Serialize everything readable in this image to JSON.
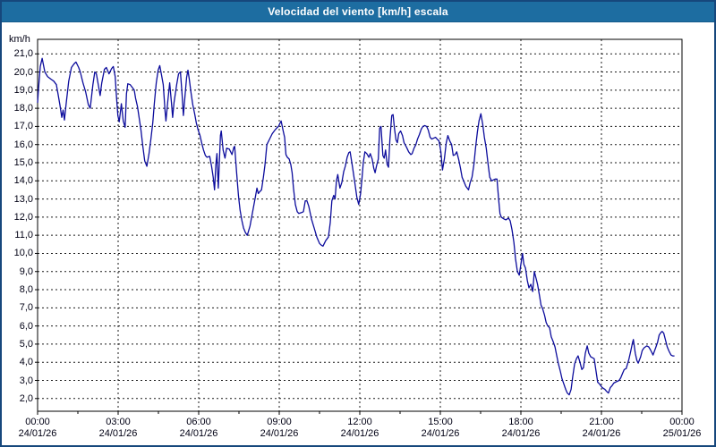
{
  "window": {
    "title": "Velocidad del viento [km/h] escala"
  },
  "colors": {
    "titlebar": "#1d6da1",
    "window_border": "#16477c",
    "line": "#0c0c9c",
    "grid": "#1a1a1a",
    "plot_border": "#000000",
    "label_text": "#000014"
  },
  "chart_data": {
    "type": "line",
    "title": "Velocidad del viento [km/h] escala",
    "ylabel": "km/h",
    "series_name": "Velocidad del viento [km/h]",
    "grid": "dotted",
    "x_hours_range": [
      0,
      24
    ],
    "y_range": [
      1.3,
      21.8
    ],
    "minor_tick_hours": 1.5,
    "y_ticks": [
      {
        "value": 2,
        "label": "2,0"
      },
      {
        "value": 3,
        "label": "3,0"
      },
      {
        "value": 4,
        "label": "4,0"
      },
      {
        "value": 5,
        "label": "5,0"
      },
      {
        "value": 6,
        "label": "6,0"
      },
      {
        "value": 7,
        "label": "7,0"
      },
      {
        "value": 8,
        "label": "8,0"
      },
      {
        "value": 9,
        "label": "9,0"
      },
      {
        "value": 10,
        "label": "10,0"
      },
      {
        "value": 11,
        "label": "11,0"
      },
      {
        "value": 12,
        "label": "12,0"
      },
      {
        "value": 13,
        "label": "13,0"
      },
      {
        "value": 14,
        "label": "14,0"
      },
      {
        "value": 15,
        "label": "15,0"
      },
      {
        "value": 16,
        "label": "16,0"
      },
      {
        "value": 17,
        "label": "17,0"
      },
      {
        "value": 18,
        "label": "18,0"
      },
      {
        "value": 19,
        "label": "19,0"
      },
      {
        "value": 20,
        "label": "20,0"
      },
      {
        "value": 21,
        "label": "21,0"
      }
    ],
    "x_ticks": [
      {
        "hour": 0,
        "time": "00:00",
        "date": "24/01/26"
      },
      {
        "hour": 3,
        "time": "03:00",
        "date": "24/01/26"
      },
      {
        "hour": 6,
        "time": "06:00",
        "date": "24/01/26"
      },
      {
        "hour": 9,
        "time": "09:00",
        "date": "24/01/26"
      },
      {
        "hour": 12,
        "time": "12:00",
        "date": "24/01/26"
      },
      {
        "hour": 15,
        "time": "15:00",
        "date": "24/01/26"
      },
      {
        "hour": 18,
        "time": "18:00",
        "date": "24/01/26"
      },
      {
        "hour": 21,
        "time": "21:00",
        "date": "24/01/26"
      },
      {
        "hour": 24,
        "time": "00:00",
        "date": "25/01/26"
      }
    ],
    "points": [
      [
        0.0,
        18.3
      ],
      [
        0.03,
        19.0
      ],
      [
        0.1,
        20.3
      ],
      [
        0.17,
        20.75
      ],
      [
        0.27,
        20.0
      ],
      [
        0.37,
        19.75
      ],
      [
        0.5,
        19.6
      ],
      [
        0.6,
        19.5
      ],
      [
        0.7,
        19.3
      ],
      [
        0.76,
        18.8
      ],
      [
        0.83,
        18.2
      ],
      [
        0.9,
        17.5
      ],
      [
        0.95,
        17.9
      ],
      [
        1.0,
        17.35
      ],
      [
        1.06,
        18.2
      ],
      [
        1.16,
        19.5
      ],
      [
        1.26,
        20.25
      ],
      [
        1.36,
        20.45
      ],
      [
        1.43,
        20.55
      ],
      [
        1.53,
        20.25
      ],
      [
        1.59,
        20.0
      ],
      [
        1.69,
        19.4
      ],
      [
        1.79,
        18.9
      ],
      [
        1.89,
        18.2
      ],
      [
        1.96,
        18.0
      ],
      [
        2.06,
        19.3
      ],
      [
        2.13,
        20.0
      ],
      [
        2.19,
        19.9
      ],
      [
        2.26,
        19.3
      ],
      [
        2.33,
        18.7
      ],
      [
        2.39,
        19.4
      ],
      [
        2.49,
        20.15
      ],
      [
        2.56,
        20.25
      ],
      [
        2.66,
        19.9
      ],
      [
        2.76,
        20.2
      ],
      [
        2.82,
        20.3
      ],
      [
        2.89,
        19.75
      ],
      [
        2.94,
        18.6
      ],
      [
        2.99,
        17.6
      ],
      [
        3.04,
        17.25
      ],
      [
        3.12,
        18.25
      ],
      [
        3.19,
        17.3
      ],
      [
        3.26,
        16.95
      ],
      [
        3.31,
        18.8
      ],
      [
        3.36,
        19.35
      ],
      [
        3.45,
        19.3
      ],
      [
        3.55,
        19.1
      ],
      [
        3.6,
        19.0
      ],
      [
        3.65,
        18.55
      ],
      [
        3.72,
        18.1
      ],
      [
        3.79,
        17.4
      ],
      [
        3.85,
        16.8
      ],
      [
        3.92,
        15.9
      ],
      [
        3.99,
        15.1
      ],
      [
        4.07,
        14.8
      ],
      [
        4.15,
        15.5
      ],
      [
        4.22,
        16.3
      ],
      [
        4.29,
        17.2
      ],
      [
        4.35,
        18.3
      ],
      [
        4.42,
        19.4
      ],
      [
        4.49,
        20.1
      ],
      [
        4.55,
        20.35
      ],
      [
        4.62,
        19.8
      ],
      [
        4.68,
        19.3
      ],
      [
        4.75,
        17.8
      ],
      [
        4.78,
        17.3
      ],
      [
        4.85,
        18.4
      ],
      [
        4.92,
        19.4
      ],
      [
        4.98,
        18.4
      ],
      [
        5.03,
        17.5
      ],
      [
        5.08,
        18.3
      ],
      [
        5.18,
        19.3
      ],
      [
        5.25,
        19.9
      ],
      [
        5.32,
        20.0
      ],
      [
        5.38,
        18.8
      ],
      [
        5.43,
        17.6
      ],
      [
        5.48,
        18.5
      ],
      [
        5.55,
        19.7
      ],
      [
        5.6,
        20.1
      ],
      [
        5.65,
        19.6
      ],
      [
        5.71,
        18.9
      ],
      [
        5.78,
        18.2
      ],
      [
        5.85,
        17.7
      ],
      [
        5.91,
        17.2
      ],
      [
        5.98,
        16.8
      ],
      [
        6.05,
        16.5
      ],
      [
        6.11,
        16.1
      ],
      [
        6.18,
        15.7
      ],
      [
        6.25,
        15.4
      ],
      [
        6.31,
        15.3
      ],
      [
        6.41,
        15.35
      ],
      [
        6.48,
        14.8
      ],
      [
        6.54,
        14.2
      ],
      [
        6.59,
        13.5
      ],
      [
        6.64,
        14.9
      ],
      [
        6.68,
        15.5
      ],
      [
        6.73,
        13.6
      ],
      [
        6.81,
        16.5
      ],
      [
        6.84,
        16.75
      ],
      [
        6.91,
        15.7
      ],
      [
        6.98,
        15.25
      ],
      [
        7.04,
        15.8
      ],
      [
        7.14,
        15.75
      ],
      [
        7.24,
        15.45
      ],
      [
        7.31,
        15.85
      ],
      [
        7.34,
        15.9
      ],
      [
        7.41,
        14.5
      ],
      [
        7.48,
        13.2
      ],
      [
        7.54,
        12.4
      ],
      [
        7.61,
        11.8
      ],
      [
        7.67,
        11.4
      ],
      [
        7.74,
        11.15
      ],
      [
        7.81,
        11.0
      ],
      [
        7.91,
        11.5
      ],
      [
        8.01,
        12.3
      ],
      [
        8.11,
        13.1
      ],
      [
        8.17,
        13.6
      ],
      [
        8.22,
        13.3
      ],
      [
        8.27,
        13.4
      ],
      [
        8.34,
        13.5
      ],
      [
        8.41,
        14.2
      ],
      [
        8.47,
        14.9
      ],
      [
        8.54,
        16.0
      ],
      [
        8.64,
        16.3
      ],
      [
        8.74,
        16.6
      ],
      [
        8.84,
        16.8
      ],
      [
        8.9,
        16.9
      ],
      [
        8.97,
        17.0
      ],
      [
        9.07,
        17.3
      ],
      [
        9.14,
        16.8
      ],
      [
        9.2,
        16.4
      ],
      [
        9.25,
        15.45
      ],
      [
        9.3,
        15.3
      ],
      [
        9.37,
        15.2
      ],
      [
        9.43,
        14.9
      ],
      [
        9.48,
        14.45
      ],
      [
        9.53,
        13.6
      ],
      [
        9.6,
        12.7
      ],
      [
        9.67,
        12.3
      ],
      [
        9.73,
        12.2
      ],
      [
        9.83,
        12.25
      ],
      [
        9.9,
        12.3
      ],
      [
        9.97,
        12.9
      ],
      [
        10.03,
        12.9
      ],
      [
        10.1,
        12.6
      ],
      [
        10.2,
        11.9
      ],
      [
        10.3,
        11.4
      ],
      [
        10.4,
        10.9
      ],
      [
        10.5,
        10.55
      ],
      [
        10.57,
        10.45
      ],
      [
        10.63,
        10.4
      ],
      [
        10.73,
        10.7
      ],
      [
        10.83,
        10.9
      ],
      [
        10.9,
        11.7
      ],
      [
        10.96,
        12.9
      ],
      [
        11.03,
        13.2
      ],
      [
        11.08,
        13.0
      ],
      [
        11.13,
        14.0
      ],
      [
        11.18,
        14.35
      ],
      [
        11.26,
        13.6
      ],
      [
        11.33,
        13.9
      ],
      [
        11.4,
        14.5
      ],
      [
        11.46,
        14.8
      ],
      [
        11.53,
        15.3
      ],
      [
        11.59,
        15.55
      ],
      [
        11.64,
        15.6
      ],
      [
        11.73,
        14.75
      ],
      [
        11.81,
        13.95
      ],
      [
        11.89,
        13.1
      ],
      [
        11.96,
        12.7
      ],
      [
        12.03,
        13.3
      ],
      [
        12.08,
        14.1
      ],
      [
        12.13,
        15.0
      ],
      [
        12.19,
        15.6
      ],
      [
        12.26,
        15.5
      ],
      [
        12.34,
        15.3
      ],
      [
        12.39,
        15.5
      ],
      [
        12.46,
        15.2
      ],
      [
        12.52,
        14.7
      ],
      [
        12.57,
        14.45
      ],
      [
        12.62,
        14.8
      ],
      [
        12.69,
        15.2
      ],
      [
        12.74,
        16.9
      ],
      [
        12.79,
        17.0
      ],
      [
        12.86,
        15.4
      ],
      [
        12.91,
        15.25
      ],
      [
        12.96,
        15.7
      ],
      [
        13.02,
        14.9
      ],
      [
        13.07,
        14.75
      ],
      [
        13.12,
        16.25
      ],
      [
        13.19,
        17.6
      ],
      [
        13.24,
        17.65
      ],
      [
        13.29,
        16.9
      ],
      [
        13.35,
        16.25
      ],
      [
        13.4,
        16.1
      ],
      [
        13.45,
        16.6
      ],
      [
        13.52,
        16.75
      ],
      [
        13.59,
        16.5
      ],
      [
        13.65,
        16.1
      ],
      [
        13.74,
        15.85
      ],
      [
        13.82,
        15.6
      ],
      [
        13.9,
        15.45
      ],
      [
        13.95,
        15.5
      ],
      [
        14.02,
        15.8
      ],
      [
        14.09,
        16.0
      ],
      [
        14.15,
        16.3
      ],
      [
        14.22,
        16.55
      ],
      [
        14.29,
        16.85
      ],
      [
        14.35,
        17.0
      ],
      [
        14.42,
        17.05
      ],
      [
        14.49,
        17.0
      ],
      [
        14.55,
        16.8
      ],
      [
        14.62,
        16.4
      ],
      [
        14.68,
        16.3
      ],
      [
        14.75,
        16.35
      ],
      [
        14.82,
        16.4
      ],
      [
        14.88,
        16.3
      ],
      [
        14.95,
        16.2
      ],
      [
        15.02,
        15.6
      ],
      [
        15.08,
        14.6
      ],
      [
        15.15,
        15.2
      ],
      [
        15.22,
        16.1
      ],
      [
        15.28,
        16.5
      ],
      [
        15.35,
        16.2
      ],
      [
        15.42,
        16.0
      ],
      [
        15.48,
        15.4
      ],
      [
        15.55,
        15.45
      ],
      [
        15.61,
        15.6
      ],
      [
        15.68,
        15.2
      ],
      [
        15.75,
        14.7
      ],
      [
        15.81,
        14.2
      ],
      [
        15.88,
        13.95
      ],
      [
        15.95,
        13.7
      ],
      [
        16.05,
        13.5
      ],
      [
        16.11,
        13.9
      ],
      [
        16.18,
        14.2
      ],
      [
        16.25,
        14.9
      ],
      [
        16.31,
        15.8
      ],
      [
        16.38,
        16.7
      ],
      [
        16.44,
        17.3
      ],
      [
        16.51,
        17.7
      ],
      [
        16.58,
        17.1
      ],
      [
        16.64,
        16.4
      ],
      [
        16.71,
        15.8
      ],
      [
        16.78,
        14.9
      ],
      [
        16.84,
        14.2
      ],
      [
        16.91,
        14.0
      ],
      [
        16.97,
        14.05
      ],
      [
        17.04,
        14.1
      ],
      [
        17.11,
        14.1
      ],
      [
        17.17,
        13.0
      ],
      [
        17.22,
        12.2
      ],
      [
        17.27,
        12.0
      ],
      [
        17.37,
        11.9
      ],
      [
        17.44,
        11.85
      ],
      [
        17.54,
        11.95
      ],
      [
        17.6,
        11.8
      ],
      [
        17.67,
        11.3
      ],
      [
        17.74,
        10.6
      ],
      [
        17.8,
        9.7
      ],
      [
        17.87,
        9.0
      ],
      [
        17.94,
        8.8
      ],
      [
        18.0,
        9.4
      ],
      [
        18.06,
        10.0
      ],
      [
        18.11,
        9.4
      ],
      [
        18.17,
        9.2
      ],
      [
        18.24,
        8.5
      ],
      [
        18.3,
        8.1
      ],
      [
        18.37,
        8.3
      ],
      [
        18.44,
        7.9
      ],
      [
        18.5,
        9.0
      ],
      [
        18.57,
        8.6
      ],
      [
        18.62,
        8.3
      ],
      [
        18.69,
        7.7
      ],
      [
        18.75,
        7.15
      ],
      [
        18.81,
        6.95
      ],
      [
        18.88,
        6.6
      ],
      [
        18.94,
        6.2
      ],
      [
        19.0,
        6.0
      ],
      [
        19.07,
        5.9
      ],
      [
        19.13,
        5.4
      ],
      [
        19.2,
        5.15
      ],
      [
        19.27,
        4.85
      ],
      [
        19.33,
        4.4
      ],
      [
        19.4,
        3.9
      ],
      [
        19.47,
        3.5
      ],
      [
        19.53,
        3.1
      ],
      [
        19.6,
        2.8
      ],
      [
        19.67,
        2.5
      ],
      [
        19.73,
        2.3
      ],
      [
        19.8,
        2.2
      ],
      [
        19.87,
        2.5
      ],
      [
        19.93,
        3.2
      ],
      [
        20.0,
        3.9
      ],
      [
        20.07,
        4.2
      ],
      [
        20.13,
        4.35
      ],
      [
        20.2,
        4.0
      ],
      [
        20.27,
        3.6
      ],
      [
        20.33,
        3.7
      ],
      [
        20.4,
        4.5
      ],
      [
        20.47,
        4.9
      ],
      [
        20.53,
        4.5
      ],
      [
        20.6,
        4.3
      ],
      [
        20.66,
        4.25
      ],
      [
        20.73,
        4.2
      ],
      [
        20.8,
        3.5
      ],
      [
        20.86,
        2.9
      ],
      [
        20.93,
        2.8
      ],
      [
        21.03,
        2.6
      ],
      [
        21.13,
        2.5
      ],
      [
        21.19,
        2.4
      ],
      [
        21.26,
        2.3
      ],
      [
        21.33,
        2.6
      ],
      [
        21.39,
        2.7
      ],
      [
        21.46,
        2.85
      ],
      [
        21.52,
        2.9
      ],
      [
        21.59,
        2.95
      ],
      [
        21.66,
        3.0
      ],
      [
        21.72,
        3.15
      ],
      [
        21.79,
        3.4
      ],
      [
        21.85,
        3.6
      ],
      [
        21.92,
        3.65
      ],
      [
        22.02,
        4.15
      ],
      [
        22.09,
        4.6
      ],
      [
        22.16,
        5.1
      ],
      [
        22.19,
        5.25
      ],
      [
        22.26,
        4.5
      ],
      [
        22.32,
        4.1
      ],
      [
        22.37,
        3.95
      ],
      [
        22.46,
        4.3
      ],
      [
        22.52,
        4.65
      ],
      [
        22.59,
        4.8
      ],
      [
        22.69,
        4.9
      ],
      [
        22.76,
        4.85
      ],
      [
        22.82,
        4.7
      ],
      [
        22.89,
        4.5
      ],
      [
        22.92,
        4.4
      ],
      [
        23.02,
        4.8
      ],
      [
        23.09,
        5.1
      ],
      [
        23.15,
        5.5
      ],
      [
        23.22,
        5.65
      ],
      [
        23.26,
        5.7
      ],
      [
        23.32,
        5.6
      ],
      [
        23.39,
        5.2
      ],
      [
        23.45,
        4.85
      ],
      [
        23.52,
        4.6
      ],
      [
        23.59,
        4.4
      ],
      [
        23.65,
        4.35
      ],
      [
        23.72,
        4.35
      ]
    ]
  }
}
